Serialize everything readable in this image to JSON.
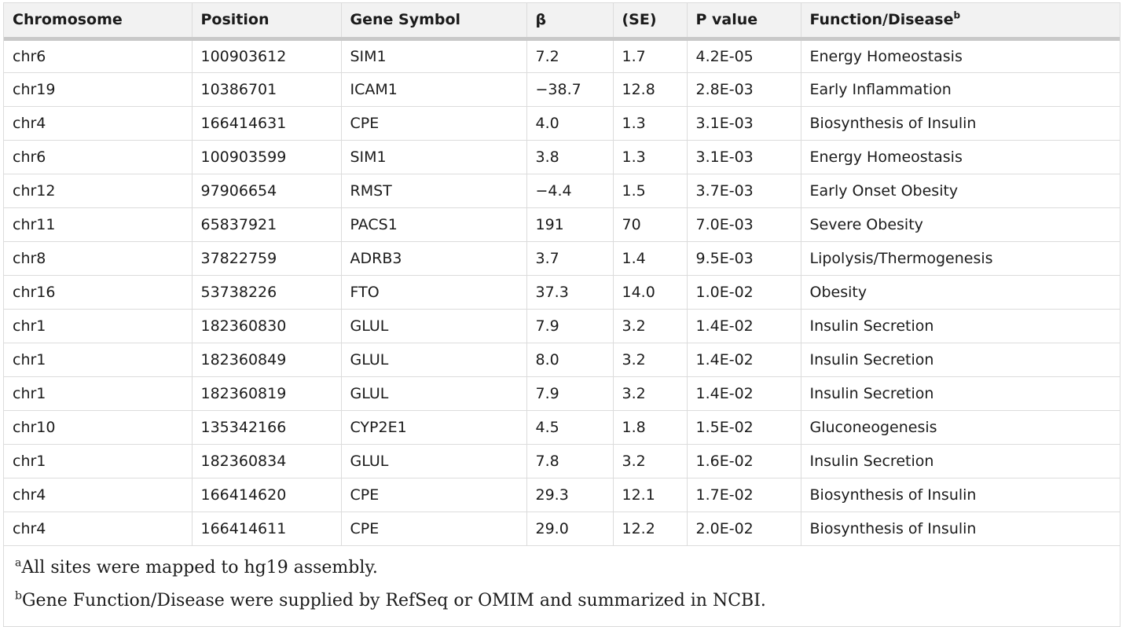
{
  "table": {
    "headers": {
      "chromosome": "Chromosome",
      "position": "Position",
      "gene_symbol": "Gene Symbol",
      "beta": "β",
      "se": "(SE)",
      "p_value": "P value",
      "function_disease": "Function/Disease",
      "function_disease_sup": "b"
    },
    "rows": [
      {
        "chromosome": "chr6",
        "position": "100903612",
        "gene": "SIM1",
        "beta": "7.2",
        "se": "1.7",
        "p": "4.2E-05",
        "function": "Energy Homeostasis"
      },
      {
        "chromosome": "chr19",
        "position": "10386701",
        "gene": "ICAM1",
        "beta": "−38.7",
        "se": "12.8",
        "p": "2.8E-03",
        "function": "Early Inflammation"
      },
      {
        "chromosome": "chr4",
        "position": "166414631",
        "gene": "CPE",
        "beta": "4.0",
        "se": "1.3",
        "p": "3.1E-03",
        "function": "Biosynthesis of Insulin"
      },
      {
        "chromosome": "chr6",
        "position": "100903599",
        "gene": "SIM1",
        "beta": "3.8",
        "se": "1.3",
        "p": "3.1E-03",
        "function": "Energy Homeostasis"
      },
      {
        "chromosome": "chr12",
        "position": "97906654",
        "gene": "RMST",
        "beta": "−4.4",
        "se": "1.5",
        "p": "3.7E-03",
        "function": "Early Onset Obesity"
      },
      {
        "chromosome": "chr11",
        "position": "65837921",
        "gene": "PACS1",
        "beta": "191",
        "se": "70",
        "p": "7.0E-03",
        "function": "Severe Obesity"
      },
      {
        "chromosome": "chr8",
        "position": "37822759",
        "gene": "ADRB3",
        "beta": "3.7",
        "se": "1.4",
        "p": "9.5E-03",
        "function": "Lipolysis/Thermogenesis"
      },
      {
        "chromosome": "chr16",
        "position": "53738226",
        "gene": "FTO",
        "beta": "37.3",
        "se": "14.0",
        "p": "1.0E-02",
        "function": "Obesity"
      },
      {
        "chromosome": "chr1",
        "position": "182360830",
        "gene": "GLUL",
        "beta": "7.9",
        "se": "3.2",
        "p": "1.4E-02",
        "function": "Insulin Secretion"
      },
      {
        "chromosome": "chr1",
        "position": "182360849",
        "gene": "GLUL",
        "beta": "8.0",
        "se": "3.2",
        "p": "1.4E-02",
        "function": "Insulin Secretion"
      },
      {
        "chromosome": "chr1",
        "position": "182360819",
        "gene": "GLUL",
        "beta": "7.9",
        "se": "3.2",
        "p": "1.4E-02",
        "function": "Insulin Secretion"
      },
      {
        "chromosome": "chr10",
        "position": "135342166",
        "gene": "CYP2E1",
        "beta": "4.5",
        "se": "1.8",
        "p": "1.5E-02",
        "function": "Gluconeogenesis"
      },
      {
        "chromosome": "chr1",
        "position": "182360834",
        "gene": "GLUL",
        "beta": "7.8",
        "se": "3.2",
        "p": "1.6E-02",
        "function": "Insulin Secretion"
      },
      {
        "chromosome": "chr4",
        "position": "166414620",
        "gene": "CPE",
        "beta": "29.3",
        "se": "12.1",
        "p": "1.7E-02",
        "function": "Biosynthesis of Insulin"
      },
      {
        "chromosome": "chr4",
        "position": "166414611",
        "gene": "CPE",
        "beta": "29.0",
        "se": "12.2",
        "p": "2.0E-02",
        "function": "Biosynthesis of Insulin"
      }
    ]
  },
  "footnotes": [
    {
      "marker": "a",
      "text": "All sites were mapped to hg19 assembly."
    },
    {
      "marker": "b",
      "text": "Gene Function/Disease were supplied by RefSeq or OMIM and summarized in NCBI."
    }
  ],
  "colors": {
    "header_background": "#f2f2f2",
    "header_rule": "#c9c9c9",
    "grid_line": "#dcdcdc",
    "text": "#1b1b1b"
  }
}
